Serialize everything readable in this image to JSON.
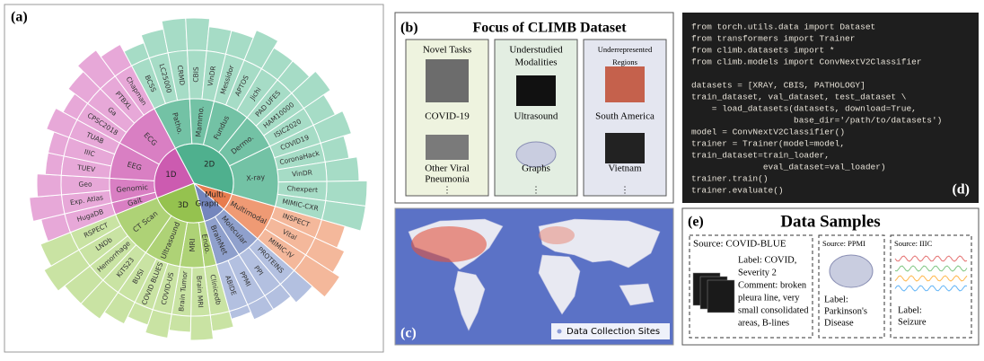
{
  "panel_a": {
    "label": "(a)",
    "sunburst": [
      {
        "label": "2D",
        "colors": [
          "#4fb08e",
          "#73c2a5",
          "#a6dcc6"
        ],
        "subgroups": [
          {
            "label": "Patho.",
            "leaves": [
              {
                "label": "BCSS",
                "size": 2
              },
              {
                "label": "LC25000",
                "size": 3
              },
              {
                "label": "CRMD",
                "size": 4
              }
            ]
          },
          {
            "label": "Mammo.",
            "leaves": [
              {
                "label": "CBIS",
                "size": 4
              },
              {
                "label": "VinDR",
                "size": 3
              }
            ]
          },
          {
            "label": "Fundus",
            "leaves": [
              {
                "label": "Messidor",
                "size": 3
              },
              {
                "label": "APTOS",
                "size": 4
              },
              {
                "label": "Jichi",
                "size": 3
              }
            ]
          },
          {
            "label": "Dermo.",
            "leaves": [
              {
                "label": "PAD UFES",
                "size": 3
              },
              {
                "label": "HAM10000",
                "size": 4
              },
              {
                "label": "ISIC2020",
                "size": 3
              }
            ]
          },
          {
            "label": "X-ray",
            "leaves": [
              {
                "label": "COVID19",
                "size": 4
              },
              {
                "label": "CoronaHack",
                "size": 3
              },
              {
                "label": "VinDR",
                "size": 4
              },
              {
                "label": "Chexpert",
                "size": 5
              },
              {
                "label": "MIMIC-CXR",
                "size": 5
              }
            ]
          }
        ]
      },
      {
        "label": "Multi.",
        "colors": [
          "#e87c4e",
          "#ef9a74",
          "#f4b89b"
        ],
        "subgroups": [
          {
            "label": "Multimodal",
            "leaves": [
              {
                "label": "INSPECT",
                "size": 3
              },
              {
                "label": "Vital",
                "size": 4
              },
              {
                "label": "MIMIC-IV",
                "size": 5
              }
            ]
          }
        ]
      },
      {
        "label": "Graph",
        "colors": [
          "#7486bd",
          "#8fa0cc",
          "#b3c0e0"
        ],
        "subgroups": [
          {
            "label": "Molecular",
            "leaves": [
              {
                "label": "PROTEINS",
                "size": 3
              },
              {
                "label": "PPI",
                "size": 2
              }
            ]
          },
          {
            "label": "BrainNet",
            "leaves": [
              {
                "label": "PPMI",
                "size": 2
              },
              {
                "label": "ABIDE",
                "size": 1
              }
            ]
          }
        ]
      },
      {
        "label": "3D",
        "colors": [
          "#95c24f",
          "#aed276",
          "#c9e3a3"
        ],
        "subgroups": [
          {
            "label": "Endo.",
            "leaves": [
              {
                "label": "Clinicedb",
                "size": 2
              }
            ]
          },
          {
            "label": "MRI",
            "leaves": [
              {
                "label": "Brain MRI",
                "size": 3
              },
              {
                "label": "Brain Tumor",
                "size": 2
              }
            ]
          },
          {
            "label": "Ultrasound",
            "leaves": [
              {
                "label": "COVID-US",
                "size": 3
              },
              {
                "label": "COVID BLUES",
                "size": 2
              },
              {
                "label": "BUSI",
                "size": 3
              }
            ]
          },
          {
            "label": "CT Scan",
            "leaves": [
              {
                "label": "KiTS23",
                "size": 4
              },
              {
                "label": "Hemorrhage",
                "size": 4
              },
              {
                "label": "LNDb",
                "size": 5
              },
              {
                "label": "RSPECT",
                "size": 4
              }
            ]
          }
        ]
      },
      {
        "label": "1D",
        "colors": [
          "#cc5bb0",
          "#d97fc3",
          "#e7a8d8"
        ],
        "subgroups": [
          {
            "label": "Gait",
            "leaves": [
              {
                "label": "HugaDB",
                "size": 3
              }
            ]
          },
          {
            "label": "Genomic",
            "leaves": [
              {
                "label": "Exp. Atlas",
                "size": 4
              },
              {
                "label": "Geo",
                "size": 3
              }
            ]
          },
          {
            "label": "EEG",
            "leaves": [
              {
                "label": "TUEV",
                "size": 2
              },
              {
                "label": "IIIC",
                "size": 2
              },
              {
                "label": "TUAB",
                "size": 3
              }
            ]
          },
          {
            "label": "ECG",
            "leaves": [
              {
                "label": "CPSC2018",
                "size": 2
              },
              {
                "label": "Ga",
                "size": 3
              },
              {
                "label": "PTBXL",
                "size": 4
              },
              {
                "label": "Chapman",
                "size": 3
              }
            ]
          }
        ]
      }
    ]
  },
  "panel_b": {
    "label": "(b)",
    "title": "Focus of CLIMB Dataset",
    "columns": [
      {
        "heading": [
          "Novel Tasks"
        ],
        "items": [
          "COVID-19"
        ],
        "footer": [
          "Other Viral",
          "Pneumonia"
        ],
        "more": "⋮"
      },
      {
        "heading": [
          "Understudied",
          "Modalities"
        ],
        "items": [
          "Ultrasound"
        ],
        "footer": [
          "Graphs"
        ],
        "more": "⋮"
      },
      {
        "heading": [
          "Underrepresented",
          "Regions"
        ],
        "items": [
          "South America"
        ],
        "footer": [
          "Vietnam"
        ],
        "more": "⋮"
      }
    ]
  },
  "panel_c": {
    "label": "(c)",
    "legend": "Data Collection Sites"
  },
  "panel_d": {
    "label": "(d)",
    "code": [
      "from torch.utils.data import Dataset",
      "from transformers import Trainer",
      "from climb.datasets import *",
      "from climb.models import ConvNextV2Classifier",
      "datasets = [XRAY, CBIS, PATHOLOGY]",
      "train_dataset, val_dataset, test_dataset \\",
      "    = load_datasets(datasets, download=True,",
      "                    base_dir='/path/to/datasets')",
      "model = ConvNextV2Classifier()",
      "trainer = Trainer(model=model,",
      "train_dataset=train_loader,",
      "              eval_dataset=val_loader)",
      "trainer.train()",
      "trainer.evaluate()"
    ]
  },
  "panel_e": {
    "label": "(e)",
    "title": "Data Samples",
    "samples": [
      {
        "source": "Source: COVID-BLUE",
        "text": [
          "Label: COVID,",
          "Severity 2",
          "Comment: broken",
          "pleura line, very",
          "small consolidated",
          "areas, B-lines"
        ]
      },
      {
        "source": "Source: PPMI",
        "text": [
          "Label:",
          "Parkinson's",
          "Disease"
        ]
      },
      {
        "source": "Source: IIIC",
        "text": [
          "Label:",
          "Seizure"
        ]
      }
    ]
  }
}
